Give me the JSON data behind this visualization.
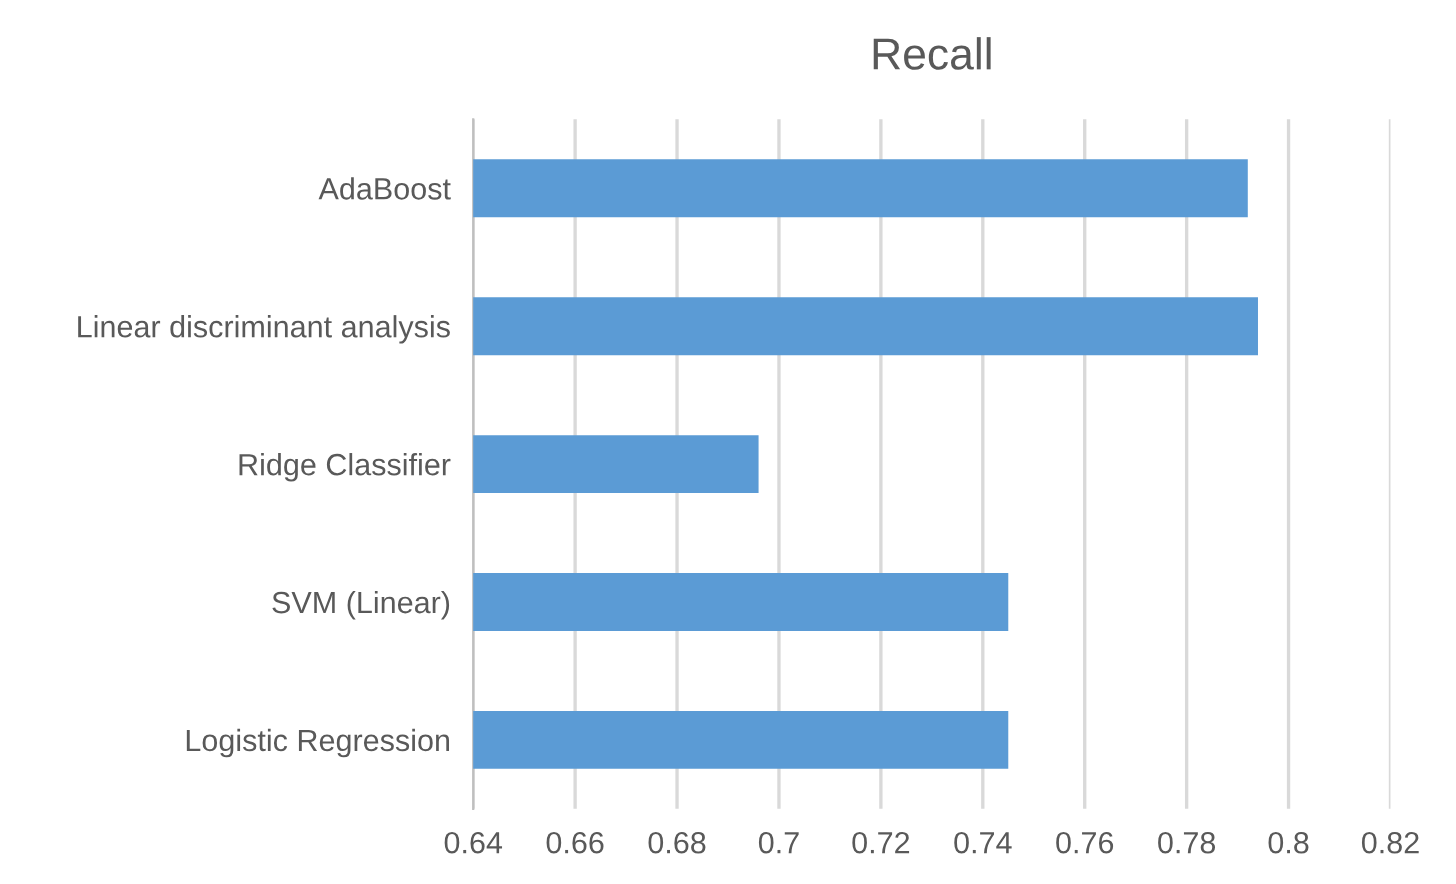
{
  "chart_data": {
    "type": "bar",
    "orientation": "horizontal",
    "title": "Recall",
    "categories": [
      "AdaBoost",
      "Linear discriminant analysis",
      "Ridge Classifier",
      "SVM (Linear)",
      "Logistic Regression"
    ],
    "values": [
      0.792,
      0.794,
      0.696,
      0.745,
      0.745
    ],
    "color": "#5b9bd5",
    "xlim": [
      0.64,
      0.82
    ],
    "xticks": [
      0.64,
      0.66,
      0.68,
      0.7,
      0.72,
      0.74,
      0.76,
      0.78,
      0.8,
      0.82
    ],
    "grid": "x"
  }
}
